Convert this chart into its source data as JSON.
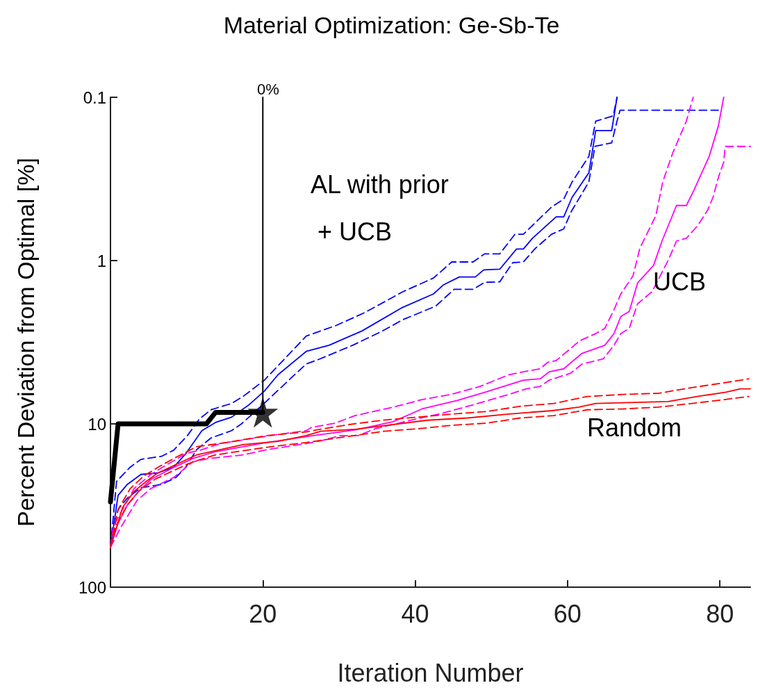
{
  "chart_data": {
    "type": "line",
    "title": "Material Optimization: Ge-Sb-Te",
    "xlabel": "Iteration Number",
    "ylabel": "Percent Deviation from Optimal [%]",
    "xlim": [
      0,
      84
    ],
    "xticks": [
      20,
      40,
      60,
      80
    ],
    "ylim": [
      100,
      0.1
    ],
    "yticks": [
      0.1,
      1,
      10,
      100
    ],
    "log": "y",
    "grid": false,
    "marker": "none",
    "line_style": "solid",
    "annotations": [
      "AL with prior\n + UCB",
      "UCB",
      "Random",
      "0%"
    ],
    "series": [
      {
        "color": "#0000ff",
        "x": [
          0,
          1.0,
          2.2,
          4.0,
          6.2,
          8.3,
          9.9,
          12.0,
          13.8,
          15.9,
          18.1,
          20.2,
          22.0,
          25.7,
          28.7,
          33.0,
          38.2,
          42.4,
          43.7,
          45.8,
          47.9,
          49.0,
          51.1,
          53.3,
          54.2,
          55.4,
          58.5,
          59.5,
          60.6,
          62.8,
          63.7,
          65.8,
          66.5
        ],
        "values": [
          57,
          27.4,
          23.5,
          20.4,
          20,
          18.4,
          15.2,
          11,
          9.8,
          9.1,
          7.7,
          6.3,
          5,
          3.6,
          3.3,
          2.7,
          1.95,
          1.6,
          1.41,
          1.26,
          1.26,
          1.14,
          1.13,
          0.85,
          0.85,
          0.73,
          0.54,
          0.54,
          0.41,
          0.29,
          0.16,
          0.16,
          0.1
        ]
      },
      {
        "color": "#0000ff",
        "line_style": "dashed",
        "x": [
          0,
          0.8,
          2.6,
          4.0,
          6.7,
          8.3,
          10.1,
          11.7,
          13.2,
          15.9,
          17.4,
          20.2,
          25.7,
          29.6,
          33.2,
          35.4,
          38.4,
          42.4,
          44.8,
          47.6,
          49.1,
          51.1,
          53.1,
          54.2,
          57.9,
          59.5,
          60.6,
          62.8,
          63.7,
          66.0,
          66.5
        ],
        "values": [
          57,
          22.5,
          18.4,
          16.5,
          15.8,
          14.5,
          11.8,
          9.3,
          8.2,
          7.5,
          6.8,
          5.4,
          2.9,
          2.5,
          2.1,
          1.85,
          1.55,
          1.28,
          1.02,
          1.02,
          0.91,
          0.91,
          0.69,
          0.69,
          0.47,
          0.42,
          0.33,
          0.23,
          0.14,
          0.13,
          0.1
        ]
      },
      {
        "color": "#0000ff",
        "line_style": "dashed",
        "x": [
          0,
          1.0,
          2.2,
          4.0,
          6.7,
          8.6,
          9.9,
          11.3,
          13.2,
          15.9,
          17.2,
          19.9,
          23.6,
          25.7,
          27.5,
          31.8,
          35.7,
          38.4,
          42.7,
          45.1,
          47.6,
          49.1,
          51.1,
          52.8,
          54.2,
          55.8,
          57.9,
          59.5,
          60.5,
          62.8,
          63.6,
          65.8,
          66.5,
          66.9,
          79.8
        ],
        "values": [
          57,
          33.4,
          28.5,
          24.6,
          23.5,
          21.3,
          18.4,
          14.4,
          12.2,
          11,
          10,
          7.7,
          5.3,
          4.3,
          4.0,
          3.3,
          2.7,
          2.3,
          1.9,
          1.5,
          1.5,
          1.36,
          1.35,
          1.03,
          1.02,
          0.84,
          0.69,
          0.64,
          0.5,
          0.33,
          0.2,
          0.19,
          0.14,
          0.12,
          0.12
        ]
      },
      {
        "color": "#ff00ff",
        "x": [
          0,
          1.0,
          2.2,
          3.7,
          5.3,
          8.3,
          10.8,
          13.8,
          17.4,
          20.5,
          23.6,
          26.6,
          32.1,
          37.1,
          40.9,
          45.5,
          49.2,
          54.2,
          56.4,
          57.6,
          59.5,
          61.9,
          64.9,
          66.1,
          67.0,
          68.1,
          69.2,
          71.3,
          72.4,
          74.3,
          75.6,
          76.6,
          78.6,
          79.8,
          80.5
        ],
        "values": [
          57,
          40.6,
          31.5,
          25.9,
          21.9,
          18.5,
          16.3,
          14.8,
          13.8,
          13.0,
          12.4,
          11.8,
          10.9,
          9.7,
          8.1,
          7.2,
          6.4,
          5.4,
          5.3,
          4.8,
          4.6,
          3.7,
          3.3,
          2.8,
          2.2,
          2.05,
          1.37,
          1.07,
          0.76,
          0.46,
          0.46,
          0.37,
          0.23,
          0.15,
          0.1
        ]
      },
      {
        "color": "#ff00ff",
        "line_style": "dashed",
        "x": [
          0,
          0.4,
          1.9,
          3.1,
          5.3,
          6.8,
          9.9,
          12.0,
          14.4,
          19.0,
          22.0,
          25.7,
          26.4,
          29.5,
          32.1,
          37.1,
          40.9,
          44.7,
          48.5,
          52.3,
          54.2,
          56.4,
          57.4,
          58.5,
          61.6,
          63.7,
          64.9,
          66.1,
          67.0,
          68.6,
          69.5,
          71.6,
          72.5,
          73.8,
          75.6,
          76.5
        ],
        "values": [
          57,
          42.2,
          31.5,
          24.9,
          20.4,
          18.5,
          15.2,
          14.4,
          13.2,
          12.2,
          11.6,
          11.0,
          10.5,
          9.9,
          8.9,
          7.9,
          7.1,
          6.6,
          5.9,
          5.0,
          4.8,
          4.6,
          4.2,
          4.1,
          3.1,
          2.8,
          2.6,
          2.0,
          1.6,
          1.24,
          0.84,
          0.53,
          0.33,
          0.22,
          0.14,
          0.1
        ]
      },
      {
        "color": "#ff00ff",
        "line_style": "dashed",
        "x": [
          0,
          1.3,
          3.5,
          5.3,
          8.3,
          10.8,
          12.9,
          17.4,
          20.5,
          25.7,
          27.6,
          30.2,
          32.5,
          34.8,
          39.4,
          43.6,
          47.8,
          52.3,
          54.6,
          56.4,
          57.6,
          60.4,
          61.9,
          64.7,
          66.1,
          67.0,
          68.1,
          69.2,
          71.1,
          73.2,
          74.3,
          75.6,
          77.1,
          78.4,
          79.1,
          79.8,
          80.5,
          80.7,
          84
        ],
        "values": [
          57,
          43.5,
          29.4,
          24.9,
          21.3,
          17.1,
          16.3,
          15.5,
          14.4,
          13.2,
          12.7,
          11.8,
          11.8,
          10.7,
          9.5,
          8.6,
          7.6,
          6.6,
          6.1,
          5.9,
          5.4,
          4.9,
          4.3,
          4.0,
          3.3,
          2.8,
          2.6,
          1.84,
          1.55,
          1.0,
          0.76,
          0.73,
          0.61,
          0.49,
          0.41,
          0.31,
          0.25,
          0.2,
          0.2
        ]
      },
      {
        "color": "#ff0000",
        "x": [
          0,
          1.6,
          3.1,
          4.7,
          6.2,
          8.3,
          11.3,
          14.4,
          17.4,
          22.0,
          25.7,
          27.6,
          32.1,
          37.1,
          41.6,
          46.9,
          52.3,
          58.0,
          61.5,
          63.7,
          73.2,
          77.0,
          80.8,
          82.7,
          84
        ],
        "values": [
          57,
          32.4,
          25.9,
          22.5,
          20.0,
          18.0,
          15.5,
          14.4,
          13.4,
          12.8,
          11.8,
          11.1,
          10.8,
          10.1,
          9.5,
          9.2,
          8.7,
          8.3,
          7.9,
          7.5,
          7.3,
          6.8,
          6.4,
          6.1,
          6.1
        ]
      },
      {
        "color": "#ff0000",
        "line_style": "dashed",
        "x": [
          0,
          1.0,
          2.6,
          4.4,
          6.2,
          8.3,
          11.3,
          15.3,
          20.5,
          25.7,
          27.0,
          31.3,
          35.7,
          44.9,
          49.4,
          53.8,
          58.2,
          62.6,
          67.3,
          71.9,
          76.3,
          80.6,
          83.8
        ],
        "values": [
          57,
          33.4,
          24.9,
          20.8,
          18.5,
          16.3,
          13.8,
          13.0,
          11.8,
          11.2,
          10.9,
          10.1,
          9.5,
          8.7,
          8.4,
          7.8,
          7.5,
          6.8,
          6.6,
          6.5,
          6.0,
          5.6,
          5.3
        ]
      },
      {
        "color": "#ff0000",
        "line_style": "dashed",
        "x": [
          0,
          0.7,
          2.2,
          3.7,
          5.8,
          8.3,
          10.8,
          13.8,
          17.4,
          21.1,
          25.7,
          35.9,
          40.5,
          44.8,
          49.4,
          53.8,
          58.2,
          62.6,
          67.3,
          71.9,
          76.3,
          80.6,
          83.8
        ],
        "values": [
          57,
          42.2,
          31.5,
          25.9,
          21.9,
          19.3,
          17.1,
          15.5,
          14.6,
          13.8,
          13.0,
          11.1,
          10.7,
          10.2,
          9.9,
          9.2,
          8.9,
          8.2,
          8.1,
          7.9,
          7.5,
          7.1,
          6.8
        ]
      },
      {
        "color": "#000000",
        "x": [
          0,
          1.0,
          12.6,
          13.8,
          20
        ],
        "values": [
          30,
          10,
          10,
          8.5,
          8.5
        ]
      },
      {
        "type": "scatter",
        "color": "#000000",
        "marker": "star",
        "x": [
          20
        ],
        "values": [
          8.5
        ]
      },
      {
        "color": "#000000",
        "x": [
          20,
          20
        ],
        "values": [
          8.5,
          0.1
        ]
      }
    ]
  }
}
